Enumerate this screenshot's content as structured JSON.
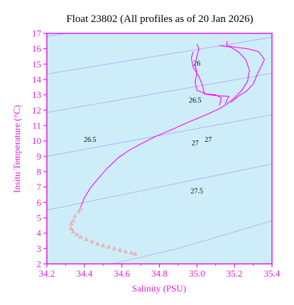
{
  "chart_data": {
    "type": "line",
    "title": "Float 23802  (All profiles as of 20 Jan 2026)",
    "xlabel": "Salinity (PSU)",
    "ylabel": "Insitu Temperature (°C)",
    "xlim": [
      34.2,
      35.4
    ],
    "ylim": [
      2,
      17
    ],
    "x_ticks": [
      "34.2",
      "34.4",
      "34.6",
      "34.8",
      "35.0",
      "35.2",
      "35.4"
    ],
    "y_ticks": [
      "2",
      "3",
      "4",
      "5",
      "6",
      "7",
      "8",
      "9",
      "10",
      "11",
      "12",
      "13",
      "14",
      "15",
      "16",
      "17"
    ],
    "grid": false,
    "colors": {
      "plot_background": "#cdeef9",
      "axis": "#e11be1",
      "profile_line": "#ff00ff",
      "deep_markers": "#ff8080",
      "isopycnal": "#b4a4f2"
    },
    "isopycnal_labels": [
      {
        "text": "26",
        "s": 35.0,
        "t": 14.9
      },
      {
        "text": "26.5",
        "s": 34.99,
        "t": 12.5
      },
      {
        "text": "26.5",
        "s": 34.43,
        "t": 9.95
      },
      {
        "text": "27",
        "s": 35.06,
        "t": 9.95
      },
      {
        "text": "27",
        "s": 34.99,
        "t": 9.7
      },
      {
        "text": "27.5",
        "s": 35.0,
        "t": 6.6
      }
    ],
    "isopycnals": [
      {
        "points": [
          [
            34.2,
            16.8
          ],
          [
            34.6,
            17.55
          ],
          [
            35.0,
            18.3
          ],
          [
            35.4,
            19.05
          ]
        ]
      },
      {
        "points": [
          [
            34.2,
            14.35
          ],
          [
            34.6,
            15.15
          ],
          [
            35.0,
            15.95
          ],
          [
            35.4,
            16.75
          ]
        ]
      },
      {
        "points": [
          [
            34.2,
            11.85
          ],
          [
            34.6,
            12.7
          ],
          [
            35.0,
            13.55
          ],
          [
            35.4,
            14.4
          ]
        ]
      },
      {
        "points": [
          [
            34.2,
            9.0
          ],
          [
            34.6,
            9.9
          ],
          [
            35.0,
            10.8
          ],
          [
            35.4,
            11.7
          ]
        ]
      },
      {
        "points": [
          [
            34.2,
            5.5
          ],
          [
            34.6,
            6.5
          ],
          [
            35.0,
            7.5
          ],
          [
            35.4,
            8.5
          ]
        ]
      },
      {
        "points": [
          [
            34.55,
            2.0
          ],
          [
            34.9,
            3.0
          ],
          [
            35.15,
            3.9
          ],
          [
            35.4,
            4.8
          ]
        ]
      }
    ],
    "series": [
      {
        "values": [
          [
            34.38,
            5.7
          ],
          [
            34.4,
            6.3
          ],
          [
            34.43,
            6.9
          ],
          [
            34.47,
            7.5
          ],
          [
            34.52,
            8.2
          ],
          [
            34.58,
            8.9
          ],
          [
            34.64,
            9.4
          ],
          [
            34.7,
            9.8
          ],
          [
            34.78,
            10.3
          ],
          [
            34.86,
            10.7
          ],
          [
            34.95,
            11.2
          ],
          [
            35.05,
            11.7
          ],
          [
            35.12,
            12.1
          ],
          [
            35.16,
            12.4
          ],
          [
            35.2,
            12.8
          ],
          [
            35.24,
            13.3
          ],
          [
            35.27,
            13.9
          ],
          [
            35.28,
            14.6
          ],
          [
            35.26,
            15.3
          ],
          [
            35.22,
            15.8
          ],
          [
            35.18,
            16.1
          ],
          [
            35.12,
            16.2
          ]
        ]
      },
      {
        "values": [
          [
            35.12,
            12.3
          ],
          [
            35.13,
            12.8
          ],
          [
            35.1,
            13.0
          ],
          [
            35.05,
            13.05
          ],
          [
            35.0,
            13.3
          ],
          [
            34.99,
            13.8
          ],
          [
            35.0,
            14.4
          ],
          [
            34.99,
            15.0
          ],
          [
            35.0,
            15.5
          ],
          [
            35.01,
            16.0
          ],
          [
            35.0,
            16.3
          ]
        ]
      },
      {
        "values": [
          [
            35.15,
            12.4
          ],
          [
            35.17,
            12.9
          ],
          [
            35.1,
            12.95
          ],
          [
            35.04,
            13.05
          ],
          [
            35.03,
            13.6
          ],
          [
            35.01,
            14.2
          ],
          [
            34.98,
            14.8
          ],
          [
            34.97,
            15.4
          ],
          [
            34.98,
            15.8
          ]
        ]
      },
      {
        "values": [
          [
            35.18,
            12.5
          ],
          [
            35.22,
            12.9
          ],
          [
            35.26,
            13.2
          ],
          [
            35.3,
            13.7
          ],
          [
            35.32,
            14.3
          ],
          [
            35.34,
            14.8
          ],
          [
            35.36,
            15.3
          ],
          [
            35.33,
            15.8
          ],
          [
            35.27,
            16.0
          ],
          [
            35.2,
            16.1
          ],
          [
            35.16,
            16.2
          ],
          [
            35.16,
            16.5
          ]
        ]
      }
    ],
    "deep_points": [
      [
        34.38,
        5.6
      ],
      [
        34.37,
        5.4
      ],
      [
        34.35,
        5.1
      ],
      [
        34.34,
        4.8
      ],
      [
        34.33,
        4.6
      ],
      [
        34.33,
        4.3
      ],
      [
        34.34,
        4.1
      ],
      [
        34.36,
        3.9
      ],
      [
        34.38,
        3.75
      ],
      [
        34.41,
        3.6
      ],
      [
        34.44,
        3.45
      ],
      [
        34.47,
        3.3
      ],
      [
        34.5,
        3.2
      ],
      [
        34.53,
        3.1
      ],
      [
        34.56,
        3.0
      ],
      [
        34.59,
        2.9
      ],
      [
        34.62,
        2.8
      ],
      [
        34.65,
        2.72
      ],
      [
        34.67,
        2.65
      ]
    ]
  }
}
